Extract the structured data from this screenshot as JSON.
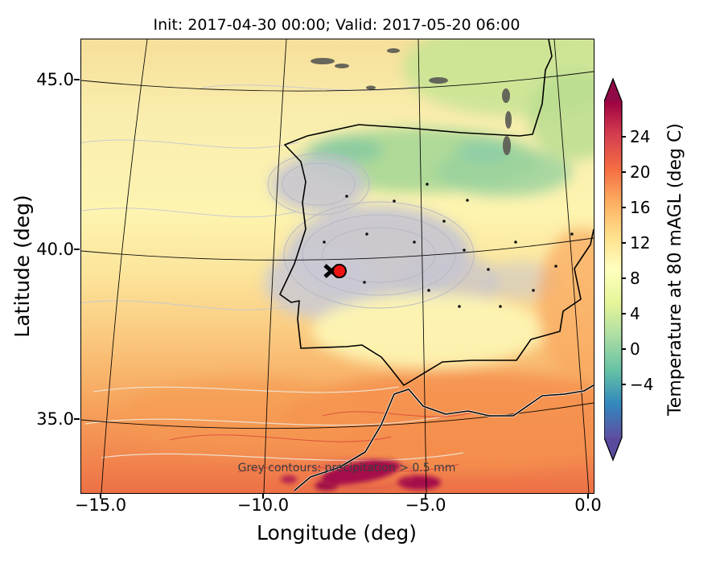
{
  "figure": {
    "title": "Init: 2017-04-30 00:00; Valid: 2017-05-20 06:00"
  },
  "axes": {
    "xlabel": "Longitude (deg)",
    "ylabel": "Latitude (deg)",
    "x_ticks": [
      "−15.0",
      "−10.0",
      "−5.0",
      "0.0"
    ],
    "y_ticks": [
      "45.0",
      "40.0",
      "35.0"
    ]
  },
  "colorbar": {
    "label": "Temperature at 80 mAGL (deg C)",
    "ticks": [
      "24",
      "20",
      "16",
      "12",
      "8",
      "4",
      "0",
      "−4"
    ],
    "colormap": "Spectral_r",
    "extend": "both",
    "top_color": "#9e0142",
    "bottom_color": "#5e4fa2"
  },
  "annotation": "Grey contours: precipitation > 0.5 mm",
  "chart_data": {
    "type": "heatmap",
    "title": "Init: 2017-04-30 00:00; Valid: 2017-05-20 06:00",
    "xlabel": "Longitude (deg)",
    "ylabel": "Latitude (deg)",
    "field": "Temperature at 80 mAGL (deg C)",
    "region": "Iberian Peninsula, Bay of Biscay and northwest Africa",
    "xlim": [
      -15.6,
      0.3
    ],
    "ylim": [
      32.9,
      46.2
    ],
    "x_ticks": [
      -15.0,
      -10.0,
      -5.0,
      0.0
    ],
    "y_ticks": [
      45.0,
      40.0,
      35.0
    ],
    "grid": true,
    "colormap": "Spectral_r",
    "colorbar_ticks": [
      24,
      20,
      16,
      12,
      8,
      4,
      0,
      -4
    ],
    "colorbar_extend": "both",
    "overlay_contours": "Grey contours: precipitation > 0.5 mm",
    "marker": {
      "lon": -7.7,
      "lat": 39.4,
      "style": "red filled circle with black cross"
    },
    "approx_grid_estimate": {
      "lons": [
        -14,
        -10,
        -6,
        -2
      ],
      "lats": [
        45,
        42,
        39,
        36,
        34
      ],
      "temp_C": [
        [
          13,
          13,
          12,
          10
        ],
        [
          13,
          12,
          9,
          9
        ],
        [
          14,
          12,
          11,
          11
        ],
        [
          17,
          18,
          16,
          15
        ],
        [
          19,
          22,
          25,
          18
        ]
      ]
    }
  }
}
